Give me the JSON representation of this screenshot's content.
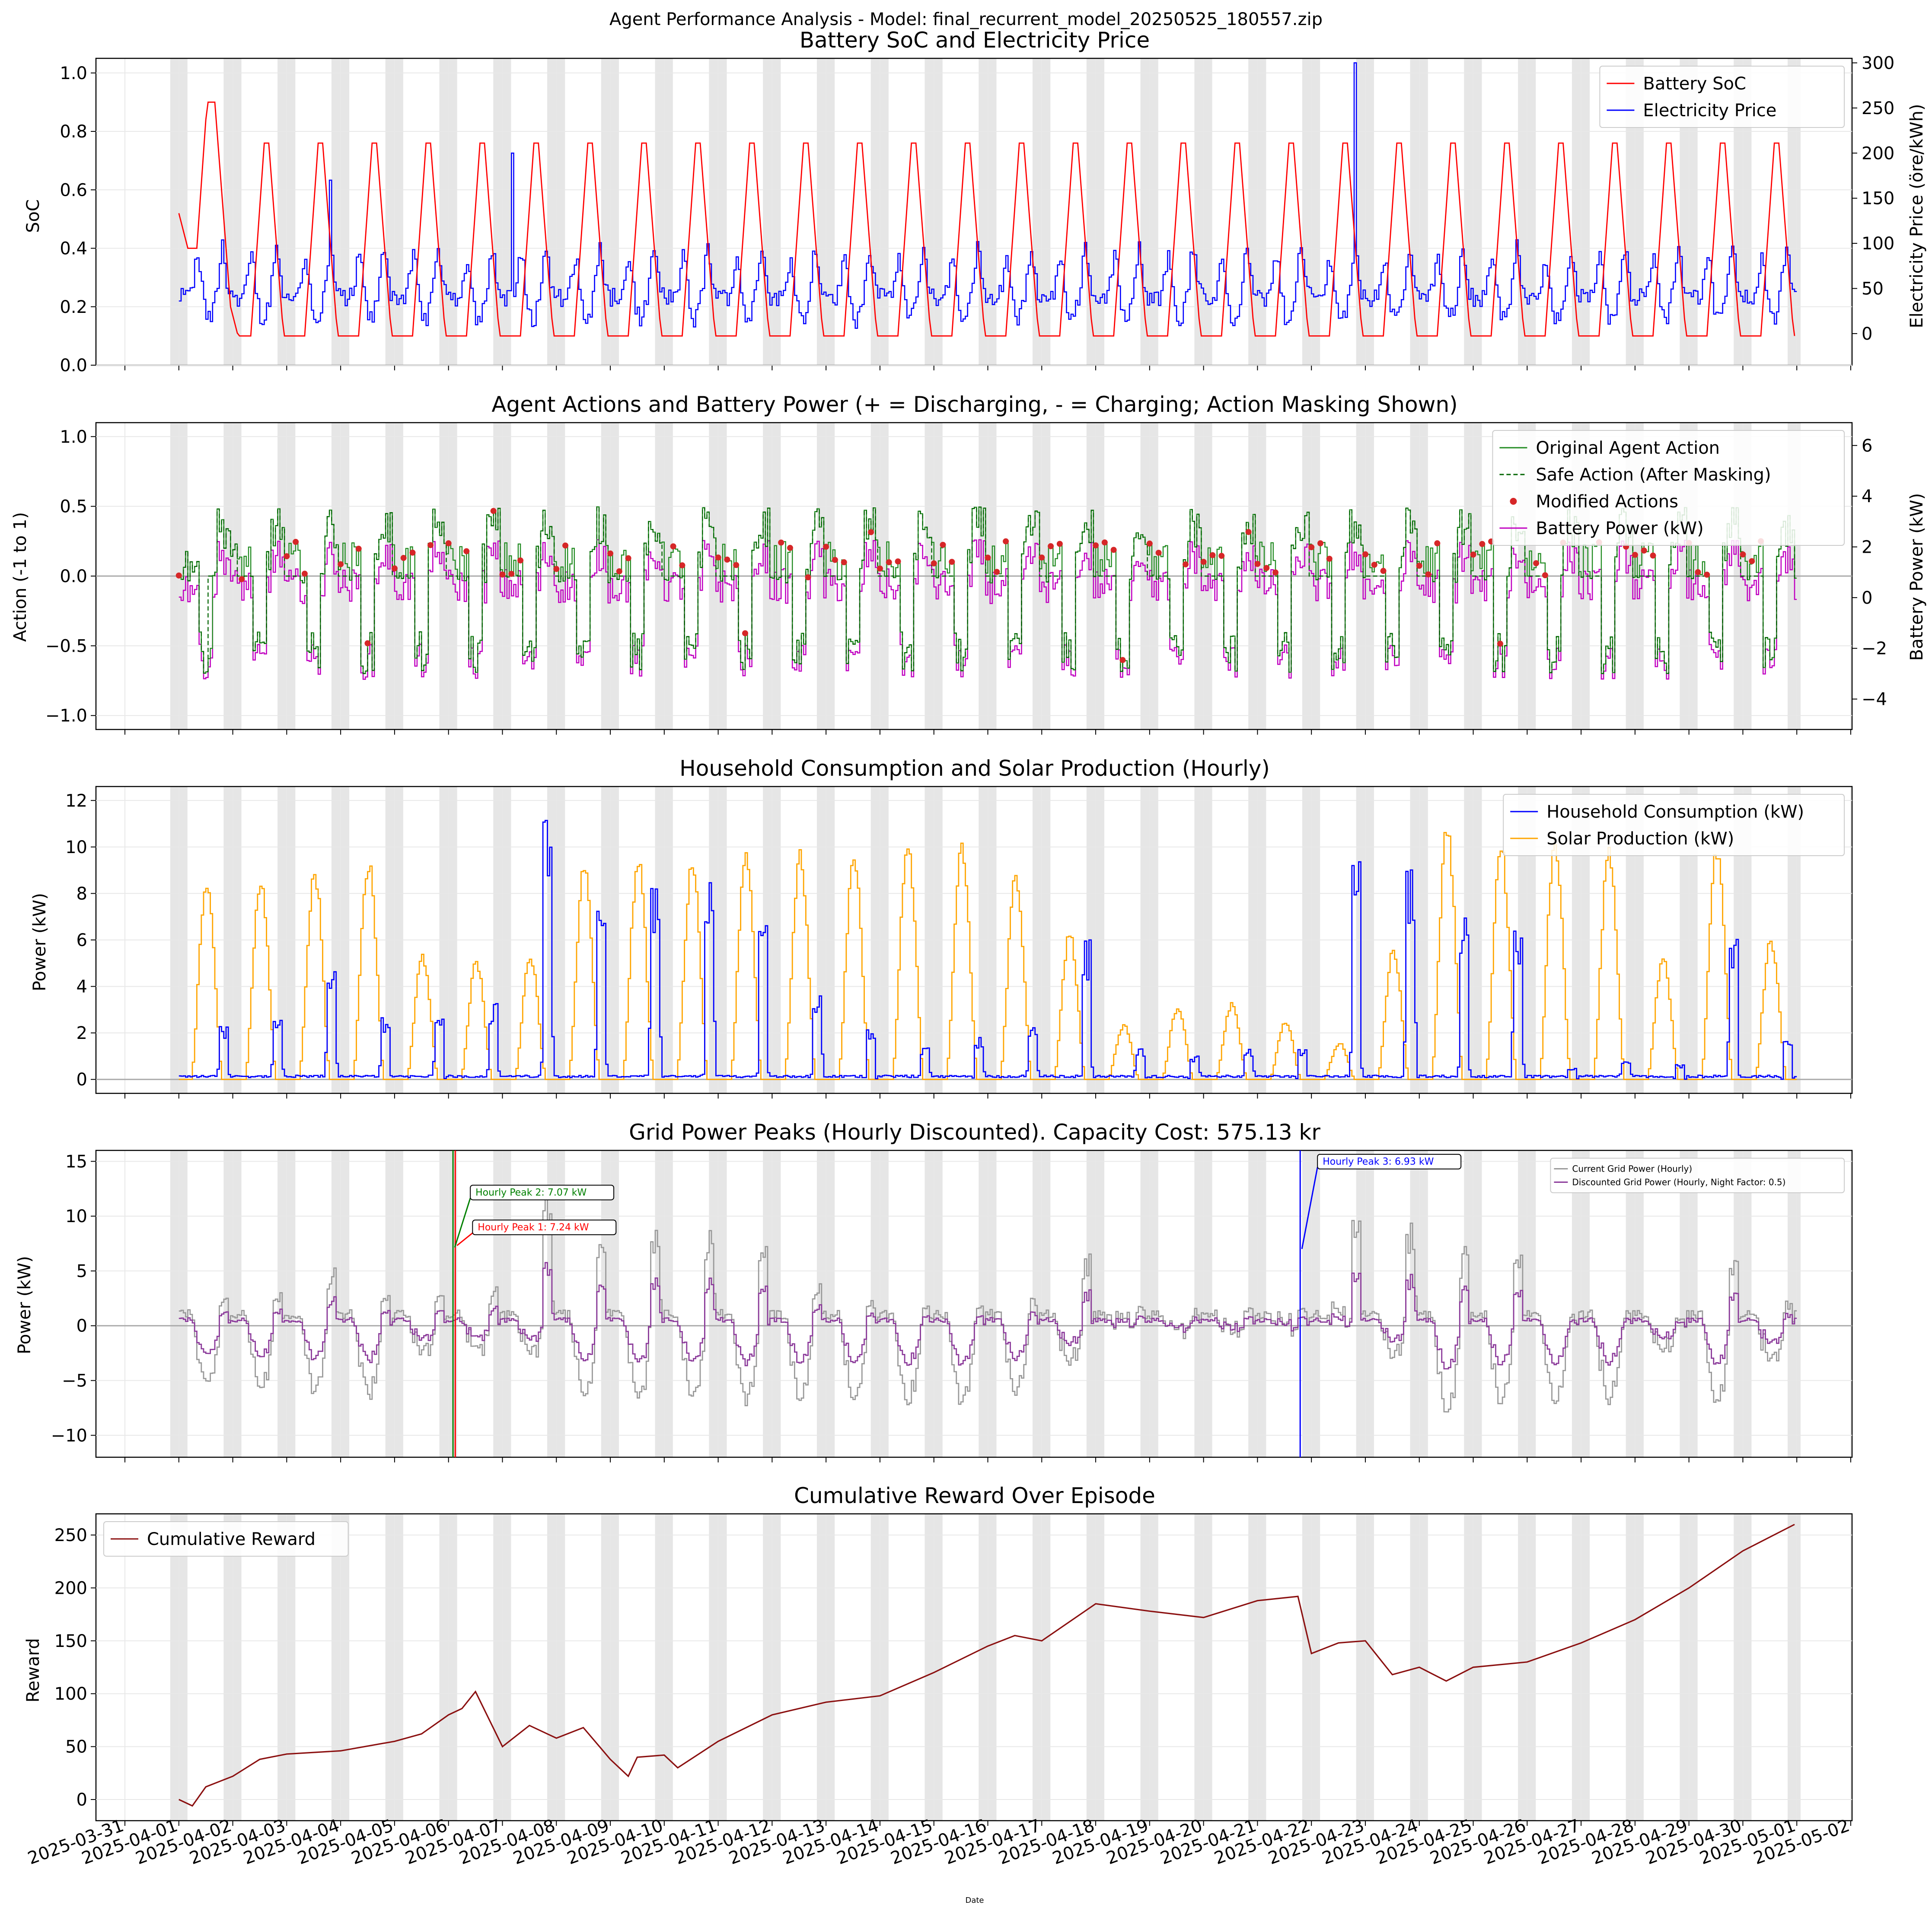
{
  "figure": {
    "suptitle": "Agent Performance Analysis - Model: final_recurrent_model_20250525_180557.zip",
    "xlabel": "Date",
    "date_ticks": [
      "2025-03-31",
      "2025-04-01",
      "2025-04-02",
      "2025-04-03",
      "2025-04-04",
      "2025-04-05",
      "2025-04-06",
      "2025-04-07",
      "2025-04-08",
      "2025-04-09",
      "2025-04-10",
      "2025-04-11",
      "2025-04-12",
      "2025-04-13",
      "2025-04-14",
      "2025-04-15",
      "2025-04-16",
      "2025-04-17",
      "2025-04-18",
      "2025-04-19",
      "2025-04-20",
      "2025-04-21",
      "2025-04-22",
      "2025-04-23",
      "2025-04-24",
      "2025-04-25",
      "2025-04-26",
      "2025-04-27",
      "2025-04-28",
      "2025-04-29",
      "2025-04-30",
      "2025-05-01",
      "2025-05-02"
    ],
    "colors": {
      "soc": "#ff0000",
      "price": "#0000ff",
      "orig": "#228b22",
      "safe": "#006400",
      "modified": "#d62728",
      "battery": "#c000c0",
      "consumption": "#0000ff",
      "solar": "#ffa500",
      "grid": "#999999",
      "discounted": "#8b3a9a",
      "reward": "#8b1010",
      "night_band": "#e6e6e6",
      "peak1": "#ff0000",
      "peak2": "#008000",
      "peak3": "#0000ff"
    }
  },
  "chart_data": [
    {
      "id": "soc_price",
      "type": "line",
      "title": "Battery SoC and Electricity Price",
      "ylabel": "SoC",
      "ylabel_right": "Electricity Price (öre/kWh)",
      "ylim": [
        0,
        1.05
      ],
      "ylim_right": [
        -35,
        305
      ],
      "yticks": [
        "0.0",
        "0.2",
        "0.4",
        "0.6",
        "0.8",
        "1.0"
      ],
      "yticks_right": [
        "0",
        "50",
        "100",
        "150",
        "200",
        "250",
        "300"
      ],
      "legend_loc": "upper right",
      "series": [
        {
          "name": "Battery SoC",
          "axis": "left",
          "kind": "soc",
          "x_range": [
            "2025-04-01 00:00",
            "2025-04-30 23:00"
          ],
          "values_note": "hourly"
        },
        {
          "name": "Electricity Price",
          "axis": "right",
          "kind": "price",
          "x_range": [
            "2025-04-01 00:00",
            "2025-04-30 23:00"
          ],
          "values_note": "hourly"
        }
      ]
    },
    {
      "id": "actions",
      "type": "line",
      "title": "Agent Actions and Battery Power (+ = Discharging, - = Charging; Action Masking Shown)",
      "ylabel": "Action (-1 to 1)",
      "ylabel_right": "Battery Power (kW)",
      "ylim": [
        -1.1,
        1.1
      ],
      "ylim_right": [
        -5.2,
        6.9
      ],
      "yticks": [
        "−1.0",
        "−0.5",
        "0.0",
        "0.5",
        "1.0"
      ],
      "yticks_right": [
        "−4",
        "−2",
        "0",
        "2",
        "4",
        "6"
      ],
      "legend_loc": "upper right",
      "series": [
        {
          "name": "Original Agent Action"
        },
        {
          "name": "Safe Action (After Masking)"
        },
        {
          "name": "Modified Actions"
        },
        {
          "name": "Battery Power (kW)"
        }
      ]
    },
    {
      "id": "consumption_solar",
      "type": "line",
      "title": "Household Consumption and Solar Production (Hourly)",
      "ylabel": "Power (kW)",
      "ylim": [
        -0.6,
        12.6
      ],
      "yticks": [
        "0",
        "2",
        "4",
        "6",
        "8",
        "10",
        "12"
      ],
      "legend_loc": "upper right",
      "series": [
        {
          "name": "Household Consumption (kW)"
        },
        {
          "name": "Solar Production (kW)"
        }
      ],
      "daily_solar_peak_kW": [
        8.8,
        8.6,
        9.2,
        9.7,
        5.5,
        5.2,
        5.4,
        9.4,
        9.7,
        9.6,
        10.0,
        10.0,
        9.9,
        10.4,
        10.2,
        9.0,
        6.4,
        2.4,
        3.2,
        3.3,
        2.5,
        1.6,
        5.7,
        11.1,
        10.2,
        10.5,
        10.2,
        5.4,
        10.2,
        6.2
      ],
      "daily_consumption_peak_kW": [
        2.5,
        2.6,
        5.3,
        2.8,
        2.6,
        3.3,
        12.0,
        7.6,
        8.3,
        8.6,
        8.8,
        3.7,
        2.3,
        1.5,
        1.9,
        2.3,
        6.1,
        1.4,
        1.0,
        1.4,
        1.4,
        9.9,
        9.1,
        7.4,
        7.0,
        0.5,
        0.9,
        0.7,
        6.5,
        1.7
      ]
    },
    {
      "id": "grid",
      "type": "line",
      "title": "Grid Power Peaks (Hourly Discounted). Capacity Cost: 575.13 kr",
      "ylabel": "Power (kW)",
      "ylim": [
        -12,
        16
      ],
      "yticks": [
        "−10",
        "−5",
        "0",
        "5",
        "10",
        "15"
      ],
      "legend_loc": "upper right",
      "series": [
        {
          "name": "Current Grid Power (Hourly)"
        },
        {
          "name": "Discounted Grid Power (Hourly, Night Factor: 0.5)"
        }
      ],
      "annotations": [
        {
          "label": "Hourly Peak 1: 7.24 kW",
          "x": "2025-04-06 03:00",
          "y": 7.24
        },
        {
          "label": "Hourly Peak 2: 7.07 kW",
          "x": "2025-04-06 02:00",
          "y": 7.07
        },
        {
          "label": "Hourly Peak 3: 6.93 kW",
          "x": "2025-04-21 19:00",
          "y": 6.93
        }
      ]
    },
    {
      "id": "reward",
      "type": "line",
      "title": "Cumulative Reward Over Episode",
      "ylabel": "Reward",
      "ylim": [
        -20,
        270
      ],
      "yticks": [
        "0",
        "50",
        "100",
        "150",
        "200",
        "250"
      ],
      "legend_loc": "upper left",
      "series": [
        {
          "name": "Cumulative Reward",
          "x": [
            "2025-04-01 00:00",
            "2025-04-01 06:00",
            "2025-04-01 12:00",
            "2025-04-02 00:00",
            "2025-04-02 12:00",
            "2025-04-03 00:00",
            "2025-04-04 00:00",
            "2025-04-05 00:00",
            "2025-04-05 12:00",
            "2025-04-06 00:00",
            "2025-04-06 06:00",
            "2025-04-06 12:00",
            "2025-04-07 00:00",
            "2025-04-07 12:00",
            "2025-04-08 00:00",
            "2025-04-08 12:00",
            "2025-04-09 00:00",
            "2025-04-09 08:00",
            "2025-04-09 12:00",
            "2025-04-10 00:00",
            "2025-04-10 06:00",
            "2025-04-11 00:00",
            "2025-04-12 00:00",
            "2025-04-13 00:00",
            "2025-04-14 00:00",
            "2025-04-15 00:00",
            "2025-04-16 00:00",
            "2025-04-16 12:00",
            "2025-04-17 00:00",
            "2025-04-18 00:00",
            "2025-04-19 00:00",
            "2025-04-20 00:00",
            "2025-04-21 00:00",
            "2025-04-21 18:00",
            "2025-04-22 00:00",
            "2025-04-22 12:00",
            "2025-04-23 00:00",
            "2025-04-23 12:00",
            "2025-04-24 00:00",
            "2025-04-24 12:00",
            "2025-04-25 00:00",
            "2025-04-26 00:00",
            "2025-04-27 00:00",
            "2025-04-28 00:00",
            "2025-04-29 00:00",
            "2025-04-30 00:00",
            "2025-04-30 23:00"
          ],
          "values": [
            0,
            -6,
            12,
            22,
            38,
            43,
            46,
            55,
            62,
            80,
            86,
            102,
            50,
            70,
            58,
            68,
            38,
            22,
            40,
            42,
            30,
            55,
            80,
            92,
            98,
            120,
            145,
            155,
            150,
            185,
            178,
            172,
            188,
            192,
            138,
            148,
            150,
            118,
            125,
            112,
            125,
            130,
            148,
            170,
            200,
            235,
            260
          ]
        }
      ]
    }
  ]
}
